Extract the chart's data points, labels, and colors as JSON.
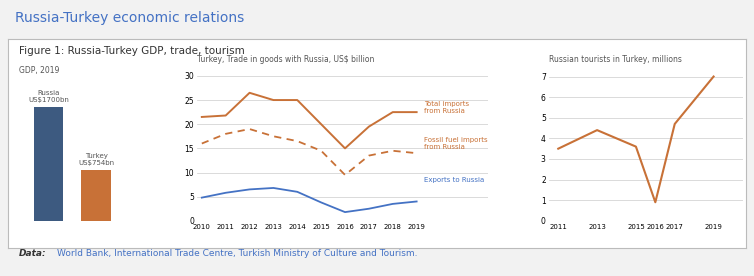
{
  "title": "Russia-Turkey economic relations",
  "figure_title": "Figure 1: Russia-Turkey GDP, trade, tourism",
  "gdp_label": "GDP, 2019",
  "trade_label": "Turkey, Trade in goods with Russia, US$ billion",
  "tourism_label": "Russian tourists in Turkey, millions",
  "gdp_values": [
    1700,
    754
  ],
  "gdp_colors": [
    "#3D5A80",
    "#C87137"
  ],
  "gdp_bar_labels": [
    "Russia\nUS$1700bn",
    "Turkey\nUS$754bn"
  ],
  "trade_years": [
    2010,
    2011,
    2012,
    2013,
    2014,
    2015,
    2016,
    2017,
    2018,
    2019
  ],
  "total_imports": [
    21.5,
    21.8,
    26.5,
    25.0,
    25.0,
    20.0,
    15.0,
    19.5,
    22.5,
    22.5
  ],
  "fossil_fuel_imports": [
    16.0,
    18.0,
    19.0,
    17.5,
    16.5,
    14.5,
    9.5,
    13.5,
    14.5,
    14.0
  ],
  "exports_to_russia": [
    4.8,
    5.8,
    6.5,
    6.8,
    6.0,
    3.8,
    1.8,
    2.5,
    3.5,
    4.0
  ],
  "tourism_years": [
    2011,
    2013,
    2015,
    2016,
    2017,
    2019
  ],
  "tourism_values": [
    3.5,
    4.4,
    3.6,
    0.9,
    4.7,
    7.0
  ],
  "trade_line_color": "#C87137",
  "exports_color": "#4472C4",
  "tourism_color": "#C87137",
  "outer_bg": "#F2F2F2",
  "panel_bg": "#FFFFFF",
  "border_color": "#BBBBBB",
  "title_color": "#4472C4",
  "label_color": "#555555",
  "annotation_color_orange": "#C87137",
  "annotation_color_blue": "#4472C4",
  "data_text": "Data:",
  "data_links": "World Bank, International Trade Centre, Turkish Ministry of Culture and Tourism.",
  "data_link_color": "#4472C4",
  "trade_ylim": [
    0,
    32
  ],
  "tourism_ylim": [
    0,
    7.5
  ],
  "trade_yticks": [
    0,
    5,
    10,
    15,
    20,
    25,
    30
  ],
  "tourism_yticks": [
    0,
    1,
    2,
    3,
    4,
    5,
    6,
    7
  ]
}
